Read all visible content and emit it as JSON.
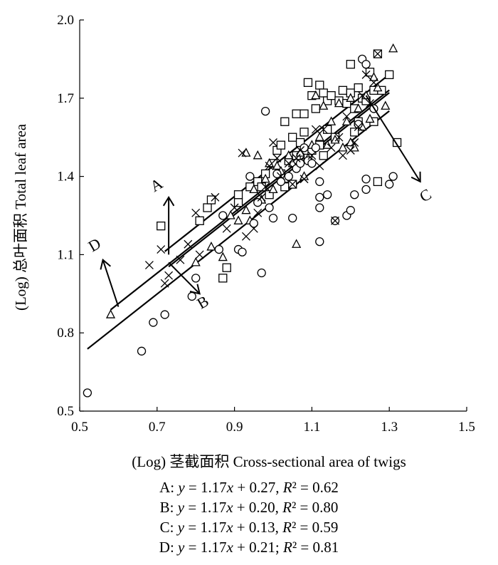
{
  "chart_data": {
    "type": "scatter",
    "title": "",
    "xlabel": "(Log) 茎截面积 Cross-sectional area of  twigs",
    "ylabel": "(Log) 总叶面积 Total leaf area",
    "xlim": [
      0.5,
      1.5
    ],
    "ylim": [
      0.5,
      2.0
    ],
    "xticks": [
      0.5,
      0.7,
      0.9,
      1.1,
      1.3,
      1.5
    ],
    "yticks": [
      0.5,
      0.8,
      1.1,
      1.4,
      1.7,
      2.0
    ],
    "xtick_labels": [
      "0.5",
      "0.7",
      "0.9",
      "1.1",
      "1.3",
      "1.5"
    ],
    "ytick_labels": [
      "0.5",
      "0.8",
      "1.1",
      "1.4",
      "1.7",
      "2.0"
    ],
    "grid": false,
    "series": [
      {
        "name": "A",
        "marker": "square",
        "points": [
          [
            0.71,
            1.21
          ],
          [
            0.81,
            1.23
          ],
          [
            0.83,
            1.28
          ],
          [
            0.84,
            1.31
          ],
          [
            0.87,
            1.01
          ],
          [
            0.88,
            1.05
          ],
          [
            0.91,
            1.3
          ],
          [
            0.91,
            1.33
          ],
          [
            0.94,
            1.36
          ],
          [
            0.96,
            1.38
          ],
          [
            0.97,
            1.36
          ],
          [
            0.98,
            1.41
          ],
          [
            0.99,
            1.33
          ],
          [
            1.0,
            1.45
          ],
          [
            1.01,
            1.5
          ],
          [
            1.02,
            1.41
          ],
          [
            1.02,
            1.52
          ],
          [
            1.03,
            1.36
          ],
          [
            1.03,
            1.61
          ],
          [
            1.04,
            1.46
          ],
          [
            1.05,
            1.37
          ],
          [
            1.05,
            1.55
          ],
          [
            1.06,
            1.48
          ],
          [
            1.06,
            1.64
          ],
          [
            1.07,
            1.53
          ],
          [
            1.08,
            1.64
          ],
          [
            1.08,
            1.57
          ],
          [
            1.09,
            1.76
          ],
          [
            1.09,
            1.47
          ],
          [
            1.1,
            1.71
          ],
          [
            1.1,
            1.5
          ],
          [
            1.11,
            1.66
          ],
          [
            1.12,
            1.75
          ],
          [
            1.12,
            1.52
          ],
          [
            1.13,
            1.72
          ],
          [
            1.13,
            1.48
          ],
          [
            1.14,
            1.69
          ],
          [
            1.14,
            1.58
          ],
          [
            1.15,
            1.71
          ],
          [
            1.16,
            1.55
          ],
          [
            1.17,
            1.69
          ],
          [
            1.18,
            1.73
          ],
          [
            1.19,
            1.68
          ],
          [
            1.2,
            1.72
          ],
          [
            1.2,
            1.83
          ],
          [
            1.21,
            1.66
          ],
          [
            1.21,
            1.57
          ],
          [
            1.22,
            1.74
          ],
          [
            1.22,
            1.61
          ],
          [
            1.23,
            1.7
          ],
          [
            1.24,
            1.69
          ],
          [
            1.25,
            1.8
          ],
          [
            1.26,
            1.73
          ],
          [
            1.26,
            1.61
          ],
          [
            1.27,
            1.38
          ],
          [
            1.27,
            1.87
          ],
          [
            1.28,
            1.73
          ],
          [
            1.3,
            1.79
          ],
          [
            1.32,
            1.53
          ]
        ]
      },
      {
        "name": "B",
        "marker": "triangle",
        "points": [
          [
            0.58,
            0.87
          ],
          [
            0.8,
            1.07
          ],
          [
            0.84,
            1.13
          ],
          [
            0.87,
            1.09
          ],
          [
            0.89,
            1.25
          ],
          [
            0.91,
            1.23
          ],
          [
            0.93,
            1.27
          ],
          [
            0.93,
            1.49
          ],
          [
            0.94,
            1.23
          ],
          [
            0.95,
            1.35
          ],
          [
            0.96,
            1.48
          ],
          [
            0.97,
            1.31
          ],
          [
            0.98,
            1.39
          ],
          [
            0.99,
            1.45
          ],
          [
            1.0,
            1.35
          ],
          [
            1.01,
            1.44
          ],
          [
            1.02,
            1.42
          ],
          [
            1.03,
            1.39
          ],
          [
            1.04,
            1.48
          ],
          [
            1.05,
            1.45
          ],
          [
            1.06,
            1.14
          ],
          [
            1.07,
            1.49
          ],
          [
            1.08,
            1.4
          ],
          [
            1.09,
            1.47
          ],
          [
            1.1,
            1.52
          ],
          [
            1.11,
            1.71
          ],
          [
            1.12,
            1.55
          ],
          [
            1.13,
            1.67
          ],
          [
            1.14,
            1.52
          ],
          [
            1.15,
            1.61
          ],
          [
            1.16,
            1.54
          ],
          [
            1.17,
            1.68
          ],
          [
            1.18,
            1.51
          ],
          [
            1.19,
            1.61
          ],
          [
            1.2,
            1.7
          ],
          [
            1.2,
            1.53
          ],
          [
            1.21,
            1.51
          ],
          [
            1.22,
            1.66
          ],
          [
            1.23,
            1.59
          ],
          [
            1.24,
            1.71
          ],
          [
            1.25,
            1.62
          ],
          [
            1.26,
            1.78
          ],
          [
            1.27,
            1.74
          ],
          [
            1.29,
            1.67
          ],
          [
            1.31,
            1.89
          ]
        ]
      },
      {
        "name": "C",
        "marker": "circle",
        "points": [
          [
            0.52,
            0.57
          ],
          [
            0.66,
            0.73
          ],
          [
            0.69,
            0.84
          ],
          [
            0.72,
            0.87
          ],
          [
            0.79,
            0.94
          ],
          [
            0.8,
            1.01
          ],
          [
            0.86,
            1.12
          ],
          [
            0.87,
            1.25
          ],
          [
            0.91,
            1.12
          ],
          [
            0.92,
            1.11
          ],
          [
            0.94,
            1.4
          ],
          [
            0.95,
            1.22
          ],
          [
            0.96,
            1.3
          ],
          [
            0.97,
            1.03
          ],
          [
            0.98,
            1.65
          ],
          [
            0.99,
            1.28
          ],
          [
            1.0,
            1.24
          ],
          [
            1.01,
            1.41
          ],
          [
            1.02,
            1.38
          ],
          [
            1.04,
            1.4
          ],
          [
            1.05,
            1.24
          ],
          [
            1.06,
            1.43
          ],
          [
            1.07,
            1.45
          ],
          [
            1.08,
            1.51
          ],
          [
            1.09,
            1.46
          ],
          [
            1.1,
            1.45
          ],
          [
            1.11,
            1.51
          ],
          [
            1.12,
            1.15
          ],
          [
            1.12,
            1.28
          ],
          [
            1.12,
            1.32
          ],
          [
            1.12,
            1.38
          ],
          [
            1.14,
            1.33
          ],
          [
            1.16,
            1.23
          ],
          [
            1.19,
            1.25
          ],
          [
            1.2,
            1.27
          ],
          [
            1.21,
            1.33
          ],
          [
            1.22,
            1.6
          ],
          [
            1.23,
            1.85
          ],
          [
            1.24,
            1.83
          ],
          [
            1.24,
            1.39
          ],
          [
            1.24,
            1.35
          ],
          [
            1.26,
            1.66
          ],
          [
            1.3,
            1.37
          ],
          [
            1.31,
            1.4
          ]
        ]
      },
      {
        "name": "D",
        "marker": "cross",
        "points": [
          [
            0.68,
            1.06
          ],
          [
            0.71,
            1.12
          ],
          [
            0.72,
            0.99
          ],
          [
            0.73,
            1.02
          ],
          [
            0.76,
            1.08
          ],
          [
            0.78,
            1.14
          ],
          [
            0.8,
            1.26
          ],
          [
            0.81,
            1.1
          ],
          [
            0.85,
            1.32
          ],
          [
            0.88,
            1.2
          ],
          [
            0.9,
            1.28
          ],
          [
            0.92,
            1.49
          ],
          [
            0.93,
            1.17
          ],
          [
            0.95,
            1.2
          ],
          [
            0.96,
            1.26
          ],
          [
            0.97,
            1.32
          ],
          [
            0.98,
            1.36
          ],
          [
            0.99,
            1.44
          ],
          [
            1.0,
            1.53
          ],
          [
            1.01,
            1.47
          ],
          [
            1.02,
            1.4
          ],
          [
            1.04,
            1.45
          ],
          [
            1.05,
            1.37
          ],
          [
            1.06,
            1.47
          ],
          [
            1.07,
            1.5
          ],
          [
            1.08,
            1.39
          ],
          [
            1.1,
            1.48
          ],
          [
            1.11,
            1.58
          ],
          [
            1.12,
            1.44
          ],
          [
            1.13,
            1.58
          ],
          [
            1.15,
            1.51
          ],
          [
            1.16,
            1.23
          ],
          [
            1.17,
            1.55
          ],
          [
            1.18,
            1.48
          ],
          [
            1.19,
            1.63
          ],
          [
            1.2,
            1.5
          ],
          [
            1.21,
            1.53
          ],
          [
            1.22,
            1.59
          ],
          [
            1.23,
            1.71
          ],
          [
            1.24,
            1.79
          ],
          [
            1.25,
            1.68
          ],
          [
            1.26,
            1.76
          ],
          [
            1.27,
            1.87
          ]
        ]
      }
    ],
    "fit_lines": [
      {
        "name": "A",
        "slope": 1.17,
        "intercept": 0.27,
        "x_range": [
          0.72,
          1.3
        ]
      },
      {
        "name": "B",
        "slope": 1.17,
        "intercept": 0.2,
        "x_range": [
          0.73,
          1.3
        ]
      },
      {
        "name": "C",
        "slope": 1.17,
        "intercept": 0.13,
        "x_range": [
          0.52,
          1.3
        ]
      },
      {
        "name": "D",
        "slope": 1.17,
        "intercept": 0.21,
        "x_range": [
          0.58,
          1.3
        ]
      }
    ],
    "annotations": [
      {
        "label": "A",
        "x": 0.73,
        "y": 1.1,
        "arrow_to": [
          0.73,
          1.32
        ],
        "text_at": [
          0.705,
          1.35
        ]
      },
      {
        "label": "B",
        "x": 0.73,
        "y": 1.07,
        "arrow_to": [
          0.81,
          0.95
        ],
        "text_at": [
          0.825,
          0.9
        ]
      },
      {
        "label": "C",
        "x": 1.24,
        "y": 1.71,
        "arrow_to": [
          1.38,
          1.38
        ],
        "text_at": [
          1.4,
          1.31
        ]
      },
      {
        "label": "D",
        "x": 0.6,
        "y": 0.9,
        "arrow_to": [
          0.56,
          1.08
        ],
        "text_at": [
          0.545,
          1.12
        ]
      }
    ],
    "equations": [
      {
        "label": "A",
        "slope": "1.17",
        "intercept": "0.27",
        "r2": "0.62",
        "sep": ","
      },
      {
        "label": "B",
        "slope": "1.17",
        "intercept": "0.20",
        "r2": "0.80",
        "sep": ","
      },
      {
        "label": "C",
        "slope": "1.17",
        "intercept": "0.13",
        "r2": "0.59",
        "sep": ","
      },
      {
        "label": "D",
        "slope": "1.17",
        "intercept": "0.21",
        "r2": "0.81",
        "sep": ";"
      }
    ]
  }
}
